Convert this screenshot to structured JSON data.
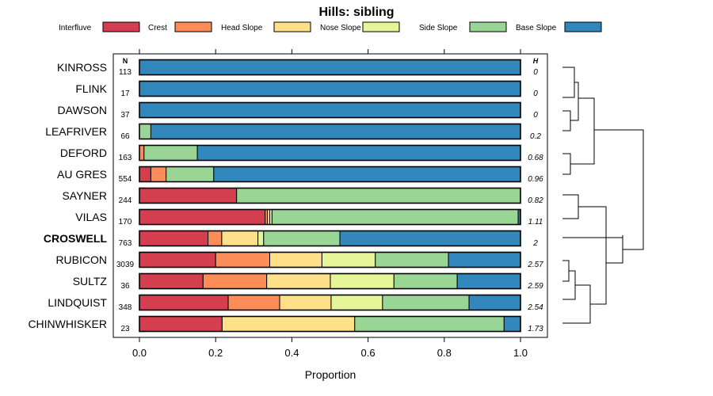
{
  "chart_data": {
    "type": "bar",
    "orientation": "horizontal-stacked",
    "title": "Hills: sibling",
    "xlabel": "Proportion",
    "ylabel": "",
    "xlim": [
      0,
      1
    ],
    "xticks": [
      "0.0",
      "0.2",
      "0.4",
      "0.6",
      "0.8",
      "1.0"
    ],
    "n_header": "N",
    "h_header": "H",
    "highlight": "CROSWELL",
    "legend_position": "top",
    "segments": [
      {
        "name": "Interfluve",
        "color": "#d53e4f"
      },
      {
        "name": "Crest",
        "color": "#fc8d59"
      },
      {
        "name": "Head Slope",
        "color": "#fee08b"
      },
      {
        "name": "Nose Slope",
        "color": "#e6f598"
      },
      {
        "name": "Side Slope",
        "color": "#99d594"
      },
      {
        "name": "Base Slope",
        "color": "#3288bd"
      }
    ],
    "rows": [
      {
        "name": "KINROSS",
        "n": "113",
        "h": "0",
        "values": [
          0,
          0,
          0,
          0,
          0,
          1.0
        ]
      },
      {
        "name": "FLINK",
        "n": "17",
        "h": "0",
        "values": [
          0,
          0,
          0,
          0,
          0,
          1.0
        ]
      },
      {
        "name": "DAWSON",
        "n": "37",
        "h": "0",
        "values": [
          0,
          0,
          0,
          0,
          0,
          1.0
        ]
      },
      {
        "name": "LEAFRIVER",
        "n": "66",
        "h": "0.2",
        "values": [
          0,
          0,
          0,
          0,
          0.03,
          0.97
        ]
      },
      {
        "name": "DEFORD",
        "n": "163",
        "h": "0.68",
        "values": [
          0,
          0.012,
          0,
          0,
          0.14,
          0.848
        ]
      },
      {
        "name": "AU GRES",
        "n": "554",
        "h": "0.96",
        "values": [
          0.03,
          0.04,
          0,
          0,
          0.125,
          0.805
        ]
      },
      {
        "name": "SAYNER",
        "n": "244",
        "h": "0.82",
        "values": [
          0.255,
          0,
          0,
          0,
          0.745,
          0
        ]
      },
      {
        "name": "VILAS",
        "n": "170",
        "h": "1.11",
        "values": [
          0.33,
          0.006,
          0.006,
          0.006,
          0.646,
          0.006
        ]
      },
      {
        "name": "CROSWELL",
        "n": "763",
        "h": "2",
        "values": [
          0.18,
          0.036,
          0.095,
          0.015,
          0.2,
          0.474
        ]
      },
      {
        "name": "RUBICON",
        "n": "3039",
        "h": "2.57",
        "values": [
          0.2,
          0.142,
          0.137,
          0.14,
          0.192,
          0.189
        ]
      },
      {
        "name": "SULTZ",
        "n": "36",
        "h": "2.59",
        "values": [
          0.167,
          0.167,
          0.167,
          0.167,
          0.166,
          0.166
        ]
      },
      {
        "name": "LINDQUIST",
        "n": "348",
        "h": "2.54",
        "values": [
          0.233,
          0.135,
          0.135,
          0.135,
          0.227,
          0.135
        ]
      },
      {
        "name": "CHINWHISKER",
        "n": "23",
        "h": "1.73",
        "values": [
          0.217,
          0,
          0.348,
          0,
          0.392,
          0.043
        ]
      }
    ]
  }
}
